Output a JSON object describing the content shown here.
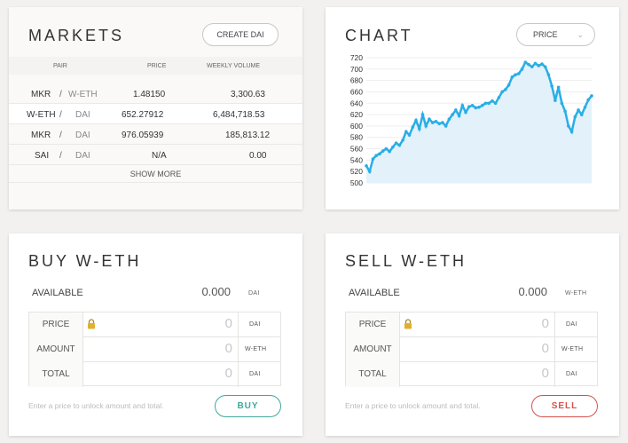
{
  "markets": {
    "title": "MARKETS",
    "create_button": "CREATE DAI",
    "columns": {
      "pair": "PAIR",
      "price": "PRICE",
      "volume": "WEEKLY VOLUME"
    },
    "rows": [
      {
        "base": "MKR",
        "sep": "/",
        "quote": "W-ETH",
        "price": "1.48150",
        "volume": "3,300.63"
      },
      {
        "base": "W-ETH",
        "sep": "/",
        "quote": "DAI",
        "price": "652.27912",
        "volume": "6,484,718.53"
      },
      {
        "base": "MKR",
        "sep": "/",
        "quote": "DAI",
        "price": "976.05939",
        "volume": "185,813.12"
      },
      {
        "base": "SAI",
        "sep": "/",
        "quote": "DAI",
        "price": "N/A",
        "volume": "0.00"
      }
    ],
    "show_more": "SHOW MORE"
  },
  "chart": {
    "title": "CHART",
    "select_value": "PRICE",
    "chevron_icon": "chevron-down-icon"
  },
  "chart_data": {
    "type": "line",
    "title": "",
    "xlabel": "",
    "ylabel": "",
    "ylim": [
      500,
      720
    ],
    "yticks": [
      500,
      520,
      540,
      560,
      580,
      600,
      620,
      640,
      660,
      680,
      700,
      720
    ],
    "grid": true,
    "fill": "area",
    "colors": {
      "line": "#29aee6",
      "fill": "#e3f1fa"
    },
    "series": [
      {
        "name": "",
        "y": [
          530,
          520,
          542,
          548,
          551,
          556,
          560,
          555,
          563,
          570,
          566,
          575,
          590,
          584,
          598,
          610,
          595,
          620,
          600,
          612,
          606,
          608,
          604,
          606,
          600,
          612,
          620,
          628,
          618,
          636,
          624,
          634,
          636,
          632,
          633,
          636,
          640,
          640,
          644,
          640,
          650,
          660,
          664,
          672,
          686,
          690,
          692,
          700,
          712,
          708,
          704,
          710,
          706,
          709,
          704,
          690,
          670,
          645,
          668,
          640,
          626,
          600,
          590,
          616,
          628,
          620,
          633,
          646,
          653
        ]
      }
    ]
  },
  "buy": {
    "title": "BUY W-ETH",
    "available_label": "AVAILABLE",
    "available_value": "0.000",
    "available_unit": "DAI",
    "rows": [
      {
        "label": "PRICE",
        "value": "0",
        "unit": "DAI"
      },
      {
        "label": "AMOUNT",
        "value": "0",
        "unit": "W-ETH"
      },
      {
        "label": "TOTAL",
        "value": "0",
        "unit": "DAI"
      }
    ],
    "hint": "Enter a price to unlock amount and total.",
    "button": "BUY",
    "accent": "#3fa89b"
  },
  "sell": {
    "title": "SELL W-ETH",
    "available_label": "AVAILABLE",
    "available_value": "0.000",
    "available_unit": "W-ETH",
    "rows": [
      {
        "label": "PRICE",
        "value": "0",
        "unit": "DAI"
      },
      {
        "label": "AMOUNT",
        "value": "0",
        "unit": "W-ETH"
      },
      {
        "label": "TOTAL",
        "value": "0",
        "unit": "DAI"
      }
    ],
    "hint": "Enter a price to unlock amount and total.",
    "button": "SELL",
    "accent": "#d6514c"
  },
  "icons": {
    "lock": "lock-icon"
  }
}
